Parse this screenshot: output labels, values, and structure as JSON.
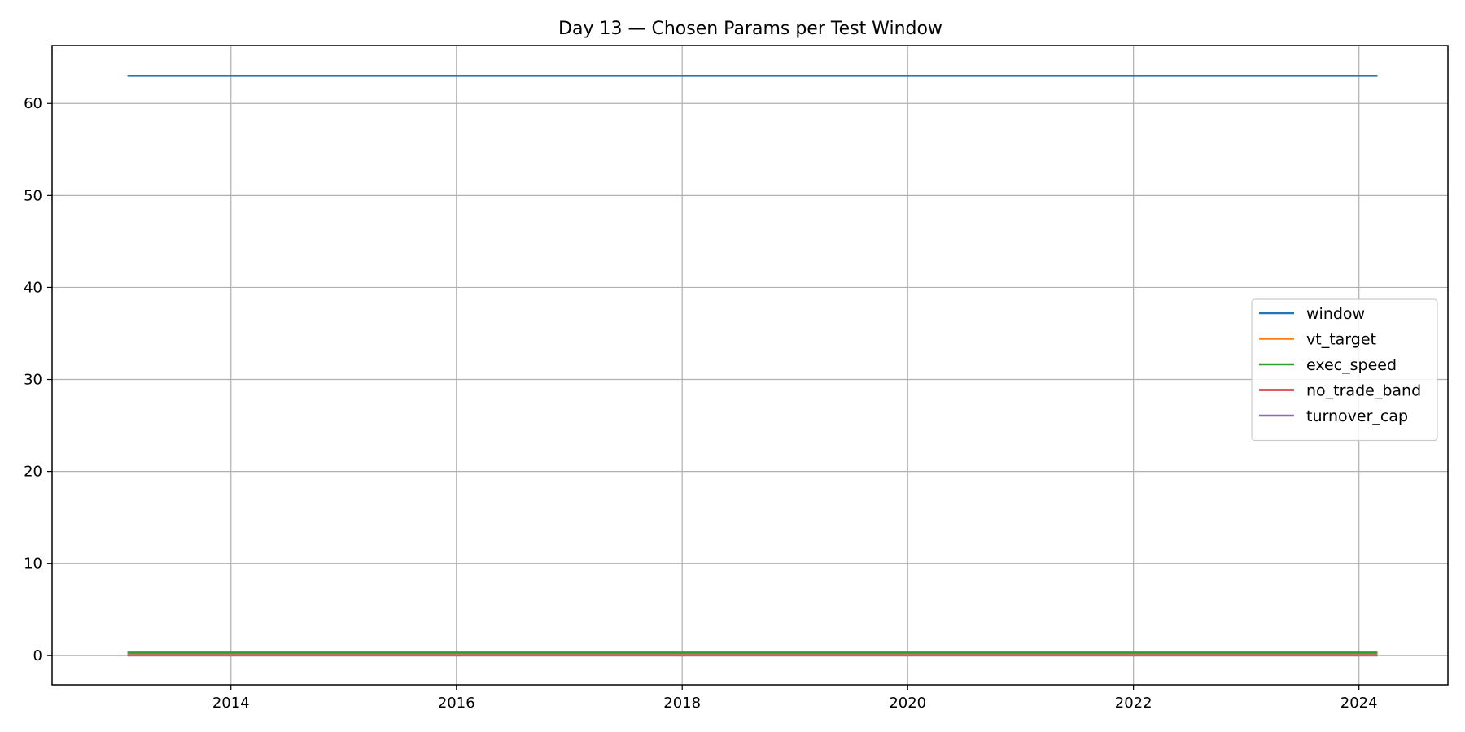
{
  "chart_data": {
    "type": "line",
    "title": "Day 13 — Chosen Params per Test Window",
    "xlabel": "",
    "ylabel": "",
    "x_type": "date",
    "x": [
      "2013-01-31",
      "2024-03-01"
    ],
    "xlim": [
      "2012-06-01",
      "2024-10-15"
    ],
    "ylim": [
      -3.2,
      66.3
    ],
    "x_ticks": [
      "2014",
      "2016",
      "2018",
      "2020",
      "2022",
      "2024"
    ],
    "y_ticks": [
      "0",
      "10",
      "20",
      "30",
      "40",
      "50",
      "60"
    ],
    "grid": true,
    "legend_position": "center-right",
    "series": [
      {
        "name": "window",
        "color": "#1f77b4",
        "values": [
          63,
          63
        ]
      },
      {
        "name": "vt_target",
        "color": "#ff7f0e",
        "values": [
          0.1,
          0.1
        ]
      },
      {
        "name": "exec_speed",
        "color": "#2ca02c",
        "values": [
          0.3,
          0.3
        ]
      },
      {
        "name": "no_trade_band",
        "color": "#d62728",
        "values": [
          0.0,
          0.0
        ]
      },
      {
        "name": "turnover_cap",
        "color": "#9467bd",
        "values": [
          0.0,
          0.0
        ]
      }
    ]
  }
}
